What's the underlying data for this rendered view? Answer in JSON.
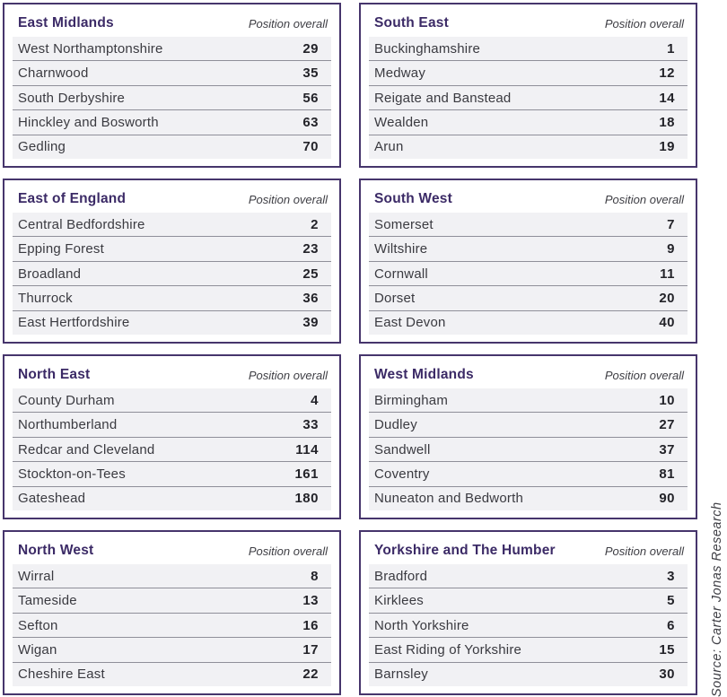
{
  "labels": {
    "position_overall": "Position overall"
  },
  "source_note": "Source: Carter Jonas Research",
  "colors": {
    "panel_border": "#46356c",
    "region_title": "#3b2a66",
    "row_background": "#f1f1f4",
    "row_separator": "#8f8f99",
    "body_text": "#3a3a40",
    "value_text": "#232329",
    "muted_italic": "#3e3e44",
    "page_background": "#ffffff"
  },
  "panels": [
    {
      "title": "East Midlands",
      "rows": [
        {
          "name": "West Northamptonshire",
          "position": "29"
        },
        {
          "name": "Charnwood",
          "position": "35"
        },
        {
          "name": "South Derbyshire",
          "position": "56"
        },
        {
          "name": "Hinckley and Bosworth",
          "position": "63"
        },
        {
          "name": "Gedling",
          "position": "70"
        }
      ]
    },
    {
      "title": "South East",
      "rows": [
        {
          "name": "Buckinghamshire",
          "position": "1"
        },
        {
          "name": "Medway",
          "position": "12"
        },
        {
          "name": "Reigate and Banstead",
          "position": "14"
        },
        {
          "name": "Wealden",
          "position": "18"
        },
        {
          "name": "Arun",
          "position": "19"
        }
      ]
    },
    {
      "title": "East of England",
      "rows": [
        {
          "name": "Central Bedfordshire",
          "position": "2"
        },
        {
          "name": "Epping Forest",
          "position": "23"
        },
        {
          "name": "Broadland",
          "position": "25"
        },
        {
          "name": "Thurrock",
          "position": "36"
        },
        {
          "name": "East Hertfordshire",
          "position": "39"
        }
      ]
    },
    {
      "title": "South West",
      "rows": [
        {
          "name": "Somerset",
          "position": "7"
        },
        {
          "name": "Wiltshire",
          "position": "9"
        },
        {
          "name": "Cornwall",
          "position": "11"
        },
        {
          "name": "Dorset",
          "position": "20"
        },
        {
          "name": "East Devon",
          "position": "40"
        }
      ]
    },
    {
      "title": "North East",
      "rows": [
        {
          "name": "County Durham",
          "position": "4"
        },
        {
          "name": "Northumberland",
          "position": "33"
        },
        {
          "name": "Redcar and Cleveland",
          "position": "114"
        },
        {
          "name": "Stockton-on-Tees",
          "position": "161"
        },
        {
          "name": "Gateshead",
          "position": "180"
        }
      ]
    },
    {
      "title": "West Midlands",
      "rows": [
        {
          "name": "Birmingham",
          "position": "10"
        },
        {
          "name": "Dudley",
          "position": "27"
        },
        {
          "name": "Sandwell",
          "position": "37"
        },
        {
          "name": "Coventry",
          "position": "81"
        },
        {
          "name": "Nuneaton and Bedworth",
          "position": "90"
        }
      ]
    },
    {
      "title": "North West",
      "rows": [
        {
          "name": "Wirral",
          "position": "8"
        },
        {
          "name": "Tameside",
          "position": "13"
        },
        {
          "name": "Sefton",
          "position": "16"
        },
        {
          "name": "Wigan",
          "position": "17"
        },
        {
          "name": "Cheshire East",
          "position": "22"
        }
      ]
    },
    {
      "title": "Yorkshire and The Humber",
      "rows": [
        {
          "name": "Bradford",
          "position": "3"
        },
        {
          "name": "Kirklees",
          "position": "5"
        },
        {
          "name": "North Yorkshire",
          "position": "6"
        },
        {
          "name": "East Riding of Yorkshire",
          "position": "15"
        },
        {
          "name": "Barnsley",
          "position": "30"
        }
      ]
    }
  ]
}
